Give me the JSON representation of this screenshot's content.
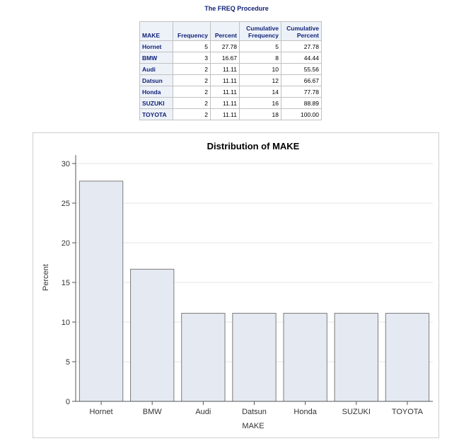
{
  "procedure_title": "The FREQ Procedure",
  "table": {
    "headers": [
      "MAKE",
      "Frequency",
      "Percent",
      "Cumulative\nFrequency",
      "Cumulative\nPercent"
    ],
    "rows": [
      [
        "Hornet",
        "5",
        "27.78",
        "5",
        "27.78"
      ],
      [
        "BMW",
        "3",
        "16.67",
        "8",
        "44.44"
      ],
      [
        "Audi",
        "2",
        "11.11",
        "10",
        "55.56"
      ],
      [
        "Datsun",
        "2",
        "11.11",
        "12",
        "66.67"
      ],
      [
        "Honda",
        "2",
        "11.11",
        "14",
        "77.78"
      ],
      [
        "SUZUKI",
        "2",
        "11.11",
        "16",
        "88.89"
      ],
      [
        "TOYOTA",
        "2",
        "11.11",
        "18",
        "100.00"
      ]
    ]
  },
  "chart_data": {
    "type": "bar",
    "title": "Distribution of MAKE",
    "xlabel": "MAKE",
    "ylabel": "Percent",
    "categories": [
      "Hornet",
      "BMW",
      "Audi",
      "Datsun",
      "Honda",
      "SUZUKI",
      "TOYOTA"
    ],
    "values": [
      27.78,
      16.67,
      11.11,
      11.11,
      11.11,
      11.11,
      11.11
    ],
    "ylim": [
      0,
      30
    ],
    "yticks": [
      0,
      5,
      10,
      15,
      20,
      25,
      30
    ],
    "grid": true,
    "bar_fill": "#e5eaf2",
    "bar_stroke": "#7a7a7a",
    "grid_color": "#e6e6e6"
  }
}
